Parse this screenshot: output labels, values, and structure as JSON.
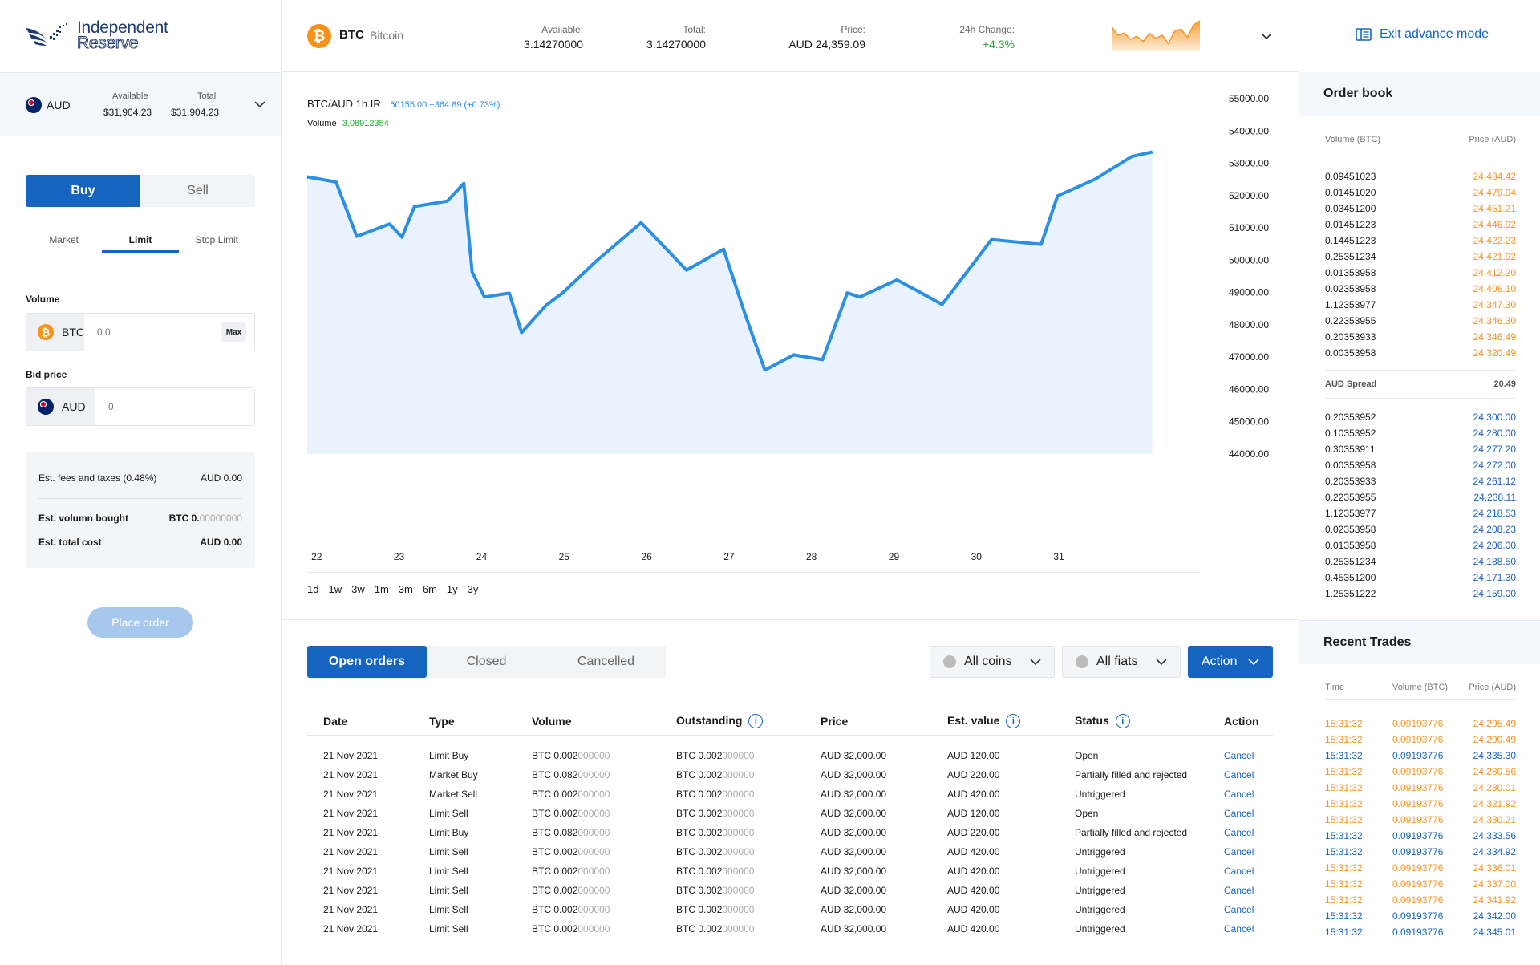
{
  "brand": {
    "line1": "Independent",
    "line2": "Reserve"
  },
  "account": {
    "currency": "AUD",
    "available_label": "Available",
    "available": "$31,904.23",
    "total_label": "Total",
    "total": "$31,904.23"
  },
  "trade": {
    "buy_label": "Buy",
    "sell_label": "Sell",
    "subtabs": [
      "Market",
      "Limit",
      "Stop Limit"
    ],
    "volume_label": "Volume",
    "volume_currency": "BTC",
    "volume_placeholder": "0.0",
    "max_label": "Max",
    "bid_label": "Bid price",
    "bid_currency": "AUD",
    "bid_placeholder": "0",
    "fees_label": "Est. fees and taxes (0.48%)",
    "fees_value": "AUD 0.00",
    "bought_label": "Est. volumn bought",
    "bought_value_bold": "BTC 0.",
    "bought_value_grey": "00000000",
    "total_label": "Est. total cost",
    "total_value": "AUD 0.00",
    "place_order": "Place order"
  },
  "ticker": {
    "symbol": "BTC",
    "name": "Bitcoin",
    "available_label": "Available:",
    "available": "3.14270000",
    "total_label": "Total:",
    "total": "3.14270000",
    "price_label": "Price:",
    "price": "AUD 24,359.09",
    "change_label": "24h Change:",
    "change": "+4.3%",
    "sparkline": [
      22,
      14,
      16,
      10,
      13,
      8,
      16,
      11,
      14,
      6,
      18,
      20,
      12,
      24,
      28
    ],
    "accent": "#f79421"
  },
  "exit_label": "Exit advance mode",
  "chart_data": {
    "type": "area",
    "title": "BTC/AUD 1h IR",
    "title_extra": "50155.00 +364.89 (+0.73%)",
    "volume_label": "Volume",
    "volume_value": "3.08912354",
    "x_ticks": [
      "22",
      "23",
      "24",
      "25",
      "26",
      "27",
      "28",
      "29",
      "30",
      "31"
    ],
    "y_ticks": [
      "55000.00",
      "54000.00",
      "53000.00",
      "52000.00",
      "51000.00",
      "50000.00",
      "49000.00",
      "48000.00",
      "47000.00",
      "46000.00",
      "45000.00",
      "44000.00"
    ],
    "ylim": [
      44000,
      55000
    ],
    "x": [
      21.95,
      22.3,
      22.55,
      22.95,
      23.1,
      23.25,
      23.65,
      23.85,
      23.95,
      24.1,
      24.4,
      24.55,
      24.85,
      25.05,
      25.45,
      26.0,
      26.55,
      27.0,
      27.25,
      27.5,
      27.85,
      28.2,
      28.5,
      28.65,
      29.1,
      29.3,
      29.65,
      30.25,
      30.85,
      31.05,
      31.5,
      31.95,
      32.2
    ],
    "values": [
      52580,
      52420,
      50740,
      51120,
      50710,
      51660,
      51830,
      52380,
      49640,
      48860,
      48980,
      47760,
      48610,
      48990,
      49960,
      51160,
      49690,
      50340,
      48400,
      46600,
      47070,
      46920,
      48990,
      48860,
      49390,
      49120,
      48630,
      50640,
      50490,
      51990,
      52500,
      53210,
      53350
    ],
    "timeframes": [
      "1d",
      "1w",
      "3w",
      "1m",
      "3m",
      "6m",
      "1y",
      "3y"
    ],
    "line_color": "#2b8fe6",
    "fill_color": "#eaf3fd"
  },
  "orders": {
    "tabs": [
      "Open orders",
      "Closed",
      "Cancelled"
    ],
    "filter_coins": "All coins",
    "filter_fiats": "All fiats",
    "action_label": "Action",
    "headers": [
      "Date",
      "Type",
      "Volume",
      "Outstanding",
      "Price",
      "Est. value",
      "Status",
      "Action"
    ],
    "rows": [
      {
        "date": "21 Nov 2021",
        "type": "Limit Buy",
        "vol_a": "BTC 0.002",
        "vol_b": "000000",
        "out_a": "BTC 0.002",
        "out_b": "000000",
        "price": "AUD 32,000.00",
        "est": "AUD 120.00",
        "status": "Open",
        "action": "Cancel"
      },
      {
        "date": "21 Nov 2021",
        "type": "Market Buy",
        "vol_a": "BTC 0.082",
        "vol_b": "000000",
        "out_a": "BTC 0.002",
        "out_b": "000000",
        "price": "AUD 32,000.00",
        "est": "AUD 220.00",
        "status": "Partially filled and rejected",
        "action": "Cancel"
      },
      {
        "date": "21 Nov 2021",
        "type": "Market Sell",
        "vol_a": "BTC 0.002",
        "vol_b": "000000",
        "out_a": "BTC 0.002",
        "out_b": "000000",
        "price": "AUD 32,000.00",
        "est": "AUD 420.00",
        "status": "Untriggered",
        "action": "Cancel"
      },
      {
        "date": "21 Nov 2021",
        "type": "Limit Sell",
        "vol_a": "BTC 0.002",
        "vol_b": "000000",
        "out_a": "BTC 0.002",
        "out_b": "000000",
        "price": "AUD 32,000.00",
        "est": "AUD 120.00",
        "status": "Open",
        "action": "Cancel"
      },
      {
        "date": "21 Nov 2021",
        "type": "Limit Buy",
        "vol_a": "BTC 0.082",
        "vol_b": "000000",
        "out_a": "BTC 0.002",
        "out_b": "000000",
        "price": "AUD 32,000.00",
        "est": "AUD 220.00",
        "status": "Partially filled and rejected",
        "action": "Cancel"
      },
      {
        "date": "21 Nov 2021",
        "type": "Limit Sell",
        "vol_a": "BTC 0.002",
        "vol_b": "000000",
        "out_a": "BTC 0.002",
        "out_b": "000000",
        "price": "AUD 32,000.00",
        "est": "AUD 420.00",
        "status": "Untriggered",
        "action": "Cancel"
      },
      {
        "date": "21 Nov 2021",
        "type": "Limit Sell",
        "vol_a": "BTC 0.002",
        "vol_b": "000000",
        "out_a": "BTC 0.002",
        "out_b": "000000",
        "price": "AUD 32,000.00",
        "est": "AUD 420.00",
        "status": "Untriggered",
        "action": "Cancel"
      },
      {
        "date": "21 Nov 2021",
        "type": "Limit Sell",
        "vol_a": "BTC 0.002",
        "vol_b": "000000",
        "out_a": "BTC 0.002",
        "out_b": "000000",
        "price": "AUD 32,000.00",
        "est": "AUD 420.00",
        "status": "Untriggered",
        "action": "Cancel"
      },
      {
        "date": "21 Nov 2021",
        "type": "Limit Sell",
        "vol_a": "BTC 0.002",
        "vol_b": "000000",
        "out_a": "BTC 0.002",
        "out_b": "000000",
        "price": "AUD 32,000.00",
        "est": "AUD 420.00",
        "status": "Untriggered",
        "action": "Cancel"
      },
      {
        "date": "21 Nov 2021",
        "type": "Limit Sell",
        "vol_a": "BTC 0.002",
        "vol_b": "000000",
        "out_a": "BTC 0.002",
        "out_b": "000000",
        "price": "AUD 32,000.00",
        "est": "AUD 420.00",
        "status": "Untriggered",
        "action": "Cancel"
      }
    ]
  },
  "order_book": {
    "title": "Order book",
    "vol_header": "Volume (BTC)",
    "price_header": "Price (AUD)",
    "asks": [
      [
        "0.09451023",
        "24,484.42"
      ],
      [
        "0.01451020",
        "24,479.94"
      ],
      [
        "0.03451200",
        "24,451.21"
      ],
      [
        "0.01451223",
        "24,446.92"
      ],
      [
        "0.14451223",
        "24,422.23"
      ],
      [
        "0.25351234",
        "24,421.92"
      ],
      [
        "0.01353958",
        "24,412.20"
      ],
      [
        "0.02353958",
        "24,406.10"
      ],
      [
        "1.12353977",
        "24,347.30"
      ],
      [
        "0.22353955",
        "24,346.30"
      ],
      [
        "0.20353933",
        "24,346.49"
      ],
      [
        "0.00353958",
        "24,320.49"
      ]
    ],
    "spread_label": "AUD Spread",
    "spread": "20.49",
    "bids": [
      [
        "0.20353952",
        "24,300.00"
      ],
      [
        "0.10353952",
        "24,280.00"
      ],
      [
        "0.30353911",
        "24,277.20"
      ],
      [
        "0.00353958",
        "24,272.00"
      ],
      [
        "0.20353933",
        "24,261.12"
      ],
      [
        "0.22353955",
        "24,238.11"
      ],
      [
        "1.12353977",
        "24,218.53"
      ],
      [
        "0.02353958",
        "24,208.23"
      ],
      [
        "0.01353958",
        "24,206.00"
      ],
      [
        "0.25351234",
        "24,188.50"
      ],
      [
        "0.45351200",
        "24,171.30"
      ],
      [
        "1.25351222",
        "24,159.00"
      ]
    ]
  },
  "recent_trades": {
    "title": "Recent Trades",
    "time_header": "Time",
    "vol_header": "Volume (BTC)",
    "price_header": "Price (AUD)",
    "rows": [
      [
        "15:31:32",
        "0.09193776",
        "24,295.49",
        "ask"
      ],
      [
        "15:31:32",
        "0.09193776",
        "24,290.49",
        "ask"
      ],
      [
        "15:31:32",
        "0.09193776",
        "24,335.30",
        "bid"
      ],
      [
        "15:31:32",
        "0.09193776",
        "24,280.56",
        "ask"
      ],
      [
        "15:31:32",
        "0.09193776",
        "24,280.01",
        "ask"
      ],
      [
        "15:31:32",
        "0.09193776",
        "24,321.92",
        "ask"
      ],
      [
        "15:31:32",
        "0.09193776",
        "24,330.21",
        "ask"
      ],
      [
        "15:31:32",
        "0.09193776",
        "24,333.56",
        "bid"
      ],
      [
        "15:31:32",
        "0.09193776",
        "24,334.92",
        "bid"
      ],
      [
        "15:31:32",
        "0.09193776",
        "24,336.01",
        "ask"
      ],
      [
        "15:31:32",
        "0.09193776",
        "24,337.00",
        "ask"
      ],
      [
        "15:31:32",
        "0.09193776",
        "24,341.92",
        "ask"
      ],
      [
        "15:31:32",
        "0.09193776",
        "24,342.00",
        "bid"
      ],
      [
        "15:31:32",
        "0.09193776",
        "24,345.01",
        "bid"
      ]
    ]
  }
}
